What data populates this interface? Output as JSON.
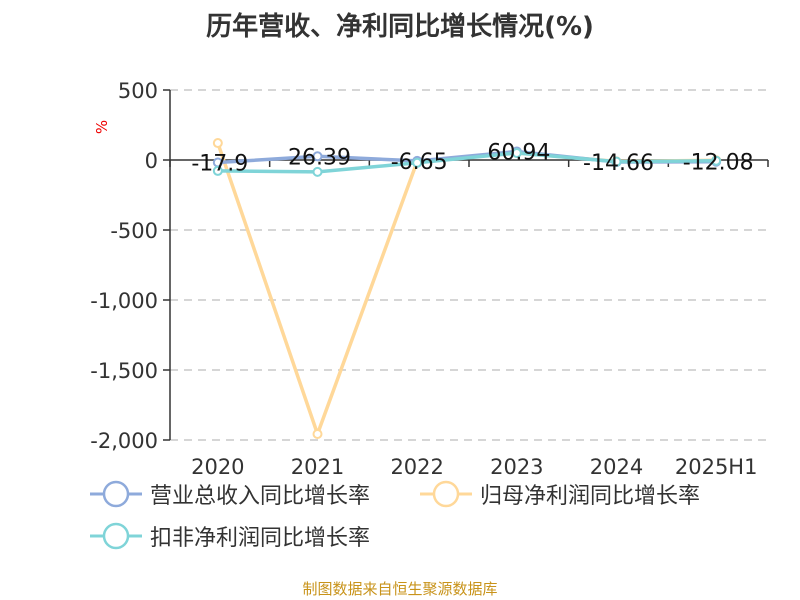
{
  "chart_data": {
    "type": "line",
    "title": "历年营收、净利同比增长情况(%)",
    "ylabel": "%",
    "categories": [
      "2020",
      "2021",
      "2022",
      "2023",
      "2024",
      "2025H1"
    ],
    "ylim": [
      -2000,
      500
    ],
    "yticks": [
      500,
      0,
      -500,
      -1000,
      -1500,
      -2000
    ],
    "ytick_labels": [
      "500",
      "0",
      "-500",
      "-1,000",
      "-1,500",
      "-2,000"
    ],
    "grid": true,
    "legend_position": "bottom",
    "series": [
      {
        "name": "营业总收入同比增长率",
        "color": "#8eaadb",
        "values": [
          -17.9,
          26.39,
          -6.65,
          60.94,
          -14.66,
          -12.08
        ],
        "labels": [
          "-17.9",
          "26.39",
          "-6.65",
          "60.94",
          "-14.66",
          "-12.08"
        ]
      },
      {
        "name": "归母净利润同比增长率",
        "color": "#ffd899",
        "values": [
          121,
          -1957,
          -10,
          50,
          -10,
          -2
        ]
      },
      {
        "name": "扣非净利润同比增长率",
        "color": "#7fd4d8",
        "values": [
          -78,
          -85,
          -20,
          50,
          -12,
          -5
        ]
      }
    ]
  },
  "source": "制图数据来自恒生聚源数据库"
}
